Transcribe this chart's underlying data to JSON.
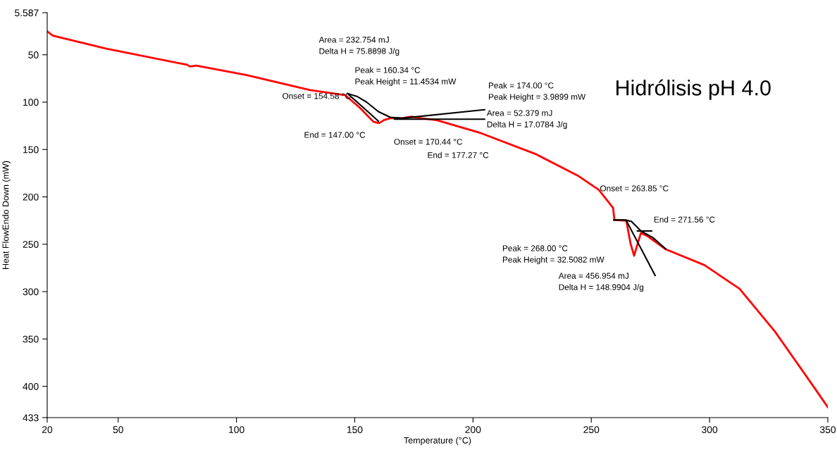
{
  "chart_data": {
    "type": "line",
    "title": "Hidrólisis pH 4.0",
    "xlabel": "Temperature (°C)",
    "ylabel": "Heat FlowEndo Down (mW)",
    "xlim": [
      20,
      350
    ],
    "xticks": [
      20,
      50,
      100,
      150,
      200,
      250,
      300,
      350
    ],
    "ylim": [
      433,
      5.587
    ],
    "yticks": [
      5.587,
      50,
      100,
      150,
      200,
      250,
      300,
      350,
      400,
      433
    ],
    "grid": false,
    "marker": "none",
    "line_style": "solid",
    "series": [
      {
        "color": "#ff0000",
        "x": [
          20,
          22.4,
          44.7,
          79,
          80.5,
          83,
          104.3,
          131.1,
          146,
          152,
          154.9,
          157.9,
          160.3,
          162.3,
          165,
          170,
          174,
          178,
          184.7,
          202.5,
          226.4,
          244.2,
          253.2,
          259.2,
          259.8,
          264.8,
          266.6,
          268.1,
          269.6,
          271,
          274,
          281.5,
          297.8,
          312.7,
          327.6,
          342.5,
          350
        ],
        "values": [
          25.3,
          29.8,
          43.4,
          60.5,
          62.4,
          61.5,
          71.5,
          87.3,
          92.7,
          105.5,
          113,
          120.7,
          122.2,
          119,
          117,
          117,
          115.4,
          117,
          119,
          132,
          154.7,
          177.4,
          192.6,
          211.5,
          224.4,
          225.2,
          249.4,
          262.2,
          249.4,
          238,
          241.8,
          255.4,
          272,
          297,
          342,
          395,
          422
        ]
      },
      {
        "color": "#000000",
        "x": [
          147,
          151,
          155,
          160,
          165,
          170,
          204.9,
          null,
          147,
          160,
          null,
          166.8,
          204.9
        ],
        "values": [
          91,
          94,
          100,
          110,
          116,
          117,
          108,
          null,
          91,
          120,
          null,
          118,
          118
        ]
      },
      {
        "color": "#000000",
        "x": [
          259.5,
          264.5,
          267,
          271,
          276,
          281.5,
          null,
          265,
          277,
          null,
          269.5,
          275.5
        ],
        "values": [
          224.4,
          224.4,
          226,
          236,
          243,
          255,
          null,
          226,
          283,
          null,
          236,
          236
        ]
      }
    ],
    "annotations": [
      "Area = 232.754 mJ\nDelta H = 75.8898 J/g",
      "Peak = 160.34 °C\nPeak Height = 11.4534 mW",
      "Onset = 154.58 °C",
      "End = 147.00 °C",
      "Peak = 174.00 °C\nPeak Height = 3.9899 mW",
      "Area = 52.379 mJ\nDelta H = 17.0784 J/g",
      "Onset = 170.44 °C",
      "End = 177.27 °C",
      "Onset = 263.85 °C",
      "End = 271.56 °C",
      "Peak = 268.00 °C\nPeak Height = 32.5082 mW",
      "Area = 456.954 mJ\nDelta H = 148.9904 J/g"
    ]
  }
}
